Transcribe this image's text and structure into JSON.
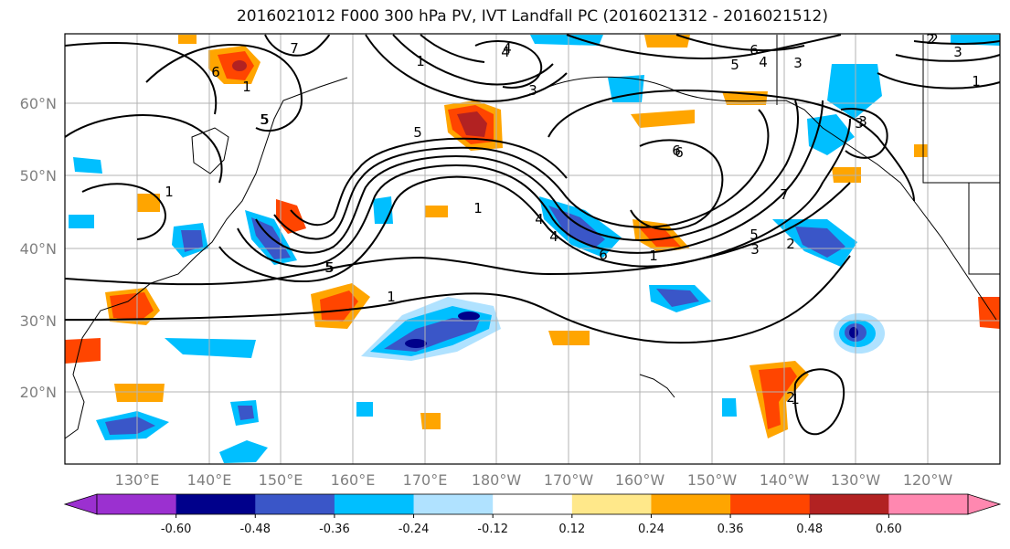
{
  "title": "2016021012 F000 300 hPa PV, IVT Landfall PC (2016021312 - 2016021512)",
  "lat_labels": [
    "60°N",
    "50°N",
    "40°N",
    "30°N",
    "20°N"
  ],
  "lon_labels": [
    "130°E",
    "140°E",
    "150°E",
    "160°E",
    "170°E",
    "180°W",
    "170°W",
    "160°W",
    "150°W",
    "140°W",
    "130°W",
    "120°W"
  ],
  "colorbar": {
    "colors": [
      "#9b30d0",
      "#00008b",
      "#3a56c8",
      "#00bfff",
      "#b0e2ff",
      "#ffffff",
      "#ffe88a",
      "#ffa500",
      "#ff4500",
      "#b22222",
      "#ff88b0"
    ],
    "tick_labels": [
      "-0.60",
      "-0.48",
      "-0.36",
      "-0.24",
      "-0.12",
      "0.12",
      "0.24",
      "0.36",
      "0.48",
      "0.60"
    ]
  },
  "contour_labels": [
    "7",
    "5",
    "1",
    "4",
    "3",
    "6",
    "5",
    "4",
    "3",
    "2",
    "1",
    "6",
    "5",
    "4",
    "1",
    "2",
    "3",
    "5",
    "6",
    "7",
    "4",
    "5",
    "6",
    "1",
    "2",
    "3",
    "1",
    "3",
    "5",
    "3",
    "4",
    "6",
    "1",
    "1",
    "5",
    "2",
    "1"
  ],
  "shading": {
    "negative": [
      "#b0e2ff",
      "#00bfff",
      "#3a56c8",
      "#00008b"
    ],
    "positive": [
      "#ffe88a",
      "#ffa500",
      "#ff4500",
      "#b22222"
    ]
  }
}
